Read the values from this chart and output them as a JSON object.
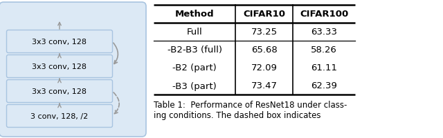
{
  "left_diagram": {
    "boxes_top_to_bottom": [
      "3x3 conv, 128",
      "3x3 conv, 128",
      "3x3 conv, 128",
      "3 conv, 128, /2"
    ],
    "box_color": "#dce9f5",
    "box_edge_color": "#a8c4e0",
    "outer_rect_color": "#dce9f5",
    "outer_rect_edge_color": "#a8c4e0",
    "arrow_color": "#999999"
  },
  "table": {
    "headers": [
      "Method",
      "CIFAR10",
      "CIFAR100"
    ],
    "rows": [
      [
        "Full",
        "73.25",
        "63.33"
      ],
      [
        "-B2-B3 (full)",
        "65.68",
        "58.26"
      ],
      [
        "-B2 (part)",
        "72.09",
        "61.11"
      ],
      [
        "-B3 (part)",
        "73.47",
        "62.39"
      ]
    ]
  },
  "caption_line1": "Table 1:  Performance of ResNet18 under class-",
  "caption_line2": "ing conditions. The dashed box indicates",
  "background_color": "#ffffff",
  "text_color": "#000000"
}
